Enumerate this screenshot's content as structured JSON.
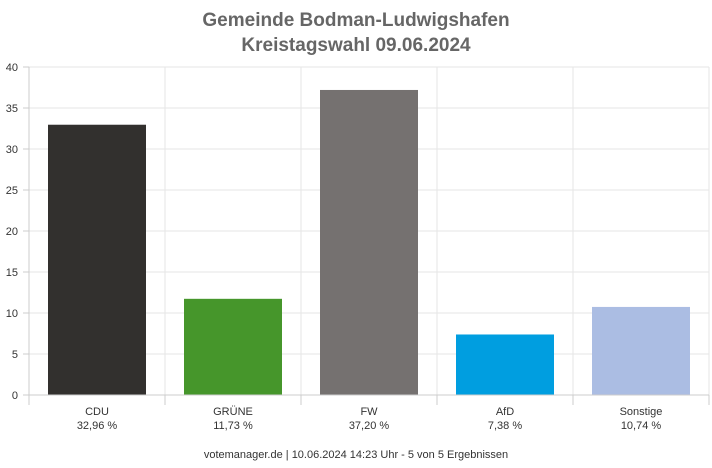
{
  "chart_data": {
    "type": "bar",
    "title": "Gemeinde Bodman-Ludwigshafen",
    "subtitle": "Kreistagswahl 09.06.2024",
    "categories": [
      "CDU",
      "GRÜNE",
      "FW",
      "AfD",
      "Sonstige"
    ],
    "values": [
      32.96,
      11.73,
      37.2,
      7.38,
      10.74
    ],
    "value_labels": [
      "32,96 %",
      "11,73 %",
      "37,20 %",
      "7,38 %",
      "10,74 %"
    ],
    "colors": [
      "#32302e",
      "#46962b",
      "#757170",
      "#009ee0",
      "#abbde3"
    ],
    "ylim": [
      0,
      40
    ],
    "yticks": [
      0,
      5,
      10,
      15,
      20,
      25,
      30,
      35,
      40
    ],
    "xlabel": "",
    "ylabel": "",
    "grid": true,
    "legend": "none"
  },
  "footer": {
    "text": "votemanager.de | 10.06.2024 14:23 Uhr - 5 von 5 Ergebnissen"
  }
}
